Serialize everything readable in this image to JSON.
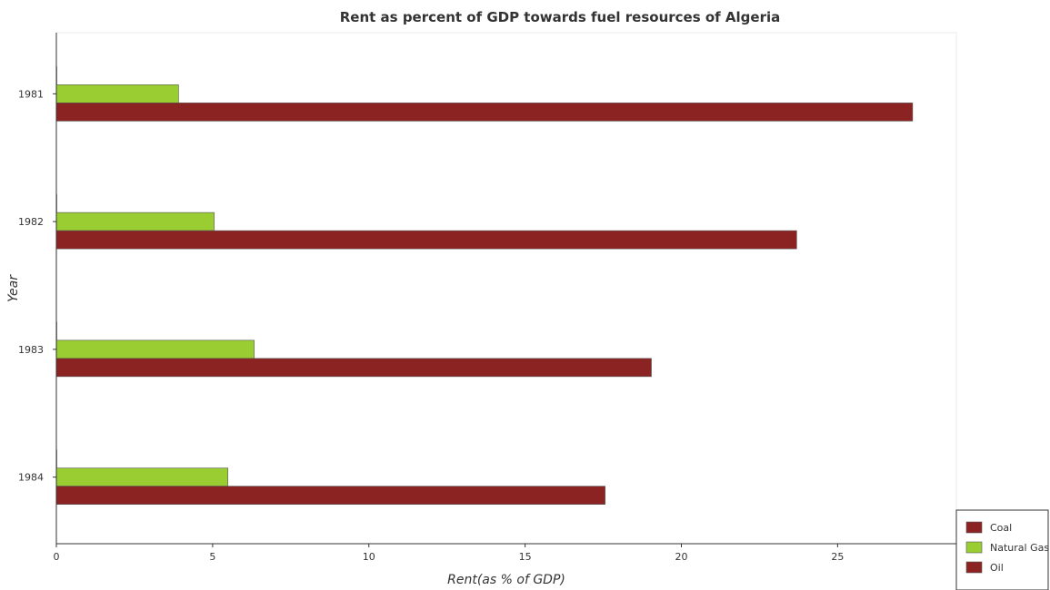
{
  "chart_data": {
    "type": "bar",
    "orientation": "horizontal",
    "title": "Rent as percent of GDP towards fuel resources of Algeria",
    "xlabel": "Rent(as % of GDP)",
    "ylabel": "Year",
    "categories": [
      "1981",
      "1982",
      "1983",
      "1984"
    ],
    "xlim": [
      0,
      28.8
    ],
    "xticks": [
      0,
      5,
      10,
      15,
      20,
      25
    ],
    "xtick_labels": [
      "0",
      "5",
      "10",
      "15",
      "20",
      "25"
    ],
    "grid": false,
    "legend_position": "bottom-right",
    "series": [
      {
        "name": "Coal",
        "color": "#8b2323",
        "values": [
          0.0005,
          0.0005,
          0.0005,
          0.0005
        ]
      },
      {
        "name": "Natural Gas",
        "color": "#9acd32",
        "values": [
          3.91,
          5.05,
          6.33,
          5.49
        ]
      },
      {
        "name": "Oil",
        "color": "#8b2323",
        "values": [
          27.4,
          23.69,
          19.04,
          17.56
        ]
      }
    ]
  }
}
